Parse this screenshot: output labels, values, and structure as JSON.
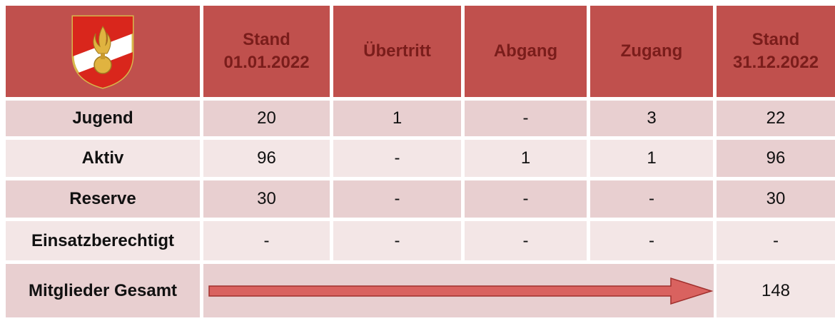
{
  "header": {
    "columns": [
      [
        "Stand",
        "01.01.2022"
      ],
      [
        "Übertritt"
      ],
      [
        "Abgang"
      ],
      [
        "Zugang"
      ],
      [
        "Stand",
        "31.12.2022"
      ]
    ]
  },
  "table": {
    "rows": [
      [
        "Jugend",
        "20",
        "1",
        "-",
        "3",
        "22"
      ],
      [
        "Aktiv",
        "96",
        "-",
        "1",
        "1",
        "96"
      ],
      [
        "Reserve",
        "30",
        "-",
        "-",
        "-",
        "30"
      ],
      [
        "Einsatzberechtigt",
        "-",
        "-",
        "-",
        "-",
        "-"
      ]
    ]
  },
  "total": {
    "label": "Mitglieder Gesamt",
    "value": "148"
  }
}
